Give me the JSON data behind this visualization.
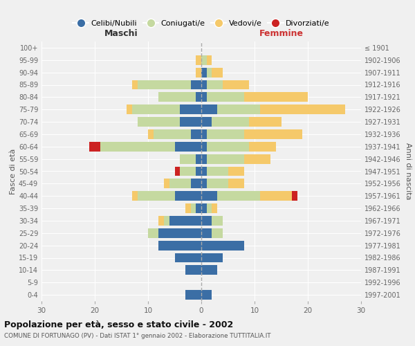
{
  "age_groups": [
    "100+",
    "95-99",
    "90-94",
    "85-89",
    "80-84",
    "75-79",
    "70-74",
    "65-69",
    "60-64",
    "55-59",
    "50-54",
    "45-49",
    "40-44",
    "35-39",
    "30-34",
    "25-29",
    "20-24",
    "15-19",
    "10-14",
    "5-9",
    "0-4"
  ],
  "birth_years": [
    "≤ 1901",
    "1902-1906",
    "1907-1911",
    "1912-1916",
    "1917-1921",
    "1922-1926",
    "1927-1931",
    "1932-1936",
    "1937-1941",
    "1942-1946",
    "1947-1951",
    "1952-1956",
    "1957-1961",
    "1962-1966",
    "1967-1971",
    "1972-1976",
    "1977-1981",
    "1982-1986",
    "1987-1991",
    "1992-1996",
    "1997-2001"
  ],
  "maschi": {
    "celibi": [
      0,
      0,
      0,
      2,
      1,
      4,
      4,
      2,
      5,
      1,
      1,
      2,
      5,
      1,
      6,
      8,
      8,
      5,
      3,
      0,
      3
    ],
    "coniugati": [
      0,
      0,
      0,
      10,
      7,
      9,
      8,
      7,
      14,
      3,
      3,
      4,
      7,
      1,
      1,
      2,
      0,
      0,
      0,
      0,
      0
    ],
    "vedovi": [
      0,
      1,
      1,
      1,
      0,
      1,
      0,
      1,
      0,
      0,
      0,
      1,
      1,
      1,
      1,
      0,
      0,
      0,
      0,
      0,
      0
    ],
    "divorziati": [
      0,
      0,
      0,
      0,
      0,
      0,
      0,
      0,
      2,
      0,
      1,
      0,
      0,
      0,
      0,
      0,
      0,
      0,
      0,
      0,
      0
    ]
  },
  "femmine": {
    "nubili": [
      0,
      0,
      1,
      1,
      1,
      3,
      2,
      1,
      1,
      1,
      1,
      1,
      3,
      1,
      2,
      2,
      8,
      4,
      3,
      0,
      2
    ],
    "coniugate": [
      0,
      1,
      1,
      3,
      7,
      8,
      7,
      7,
      8,
      7,
      4,
      4,
      8,
      1,
      2,
      2,
      0,
      0,
      0,
      0,
      0
    ],
    "vedove": [
      0,
      1,
      2,
      5,
      12,
      16,
      6,
      11,
      5,
      5,
      3,
      3,
      6,
      1,
      0,
      0,
      0,
      0,
      0,
      0,
      0
    ],
    "divorziate": [
      0,
      0,
      0,
      0,
      0,
      0,
      0,
      0,
      0,
      0,
      0,
      0,
      1,
      0,
      0,
      0,
      0,
      0,
      0,
      0,
      0
    ]
  },
  "colors": {
    "celibi": "#3b6ea5",
    "coniugati": "#c5d9a0",
    "vedovi": "#f5c96a",
    "divorziati": "#cc2222"
  },
  "title": "Popolazione per età, sesso e stato civile - 2002",
  "subtitle": "COMUNE DI FORTUNAGO (PV) - Dati ISTAT 1° gennaio 2002 - Elaborazione TUTTITALIA.IT",
  "xlabel_left": "Maschi",
  "xlabel_right": "Femmine",
  "ylabel_left": "Fasce di età",
  "ylabel_right": "Anni di nascita",
  "xlim": 30,
  "legend_labels": [
    "Celibi/Nubili",
    "Coniugati/e",
    "Vedovi/e",
    "Divorziati/e"
  ],
  "bg_color": "#f0f0f0"
}
